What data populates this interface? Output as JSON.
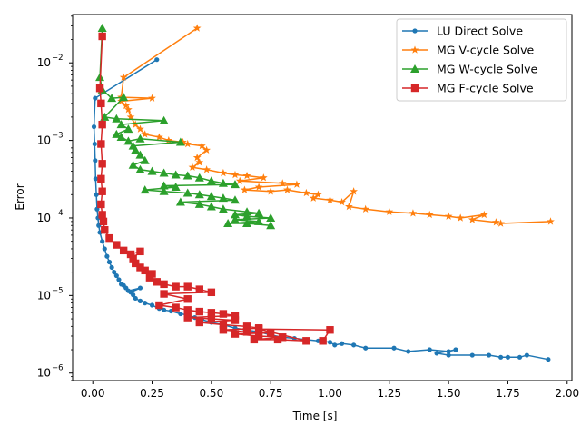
{
  "chart_data": {
    "type": "line",
    "title": "",
    "xlabel": "Time [s]",
    "ylabel": "Error",
    "xlim": [
      -0.085,
      2.02
    ],
    "ylim": [
      8e-07,
      0.042
    ],
    "yscale": "log",
    "grid": false,
    "legend_position": "top-right",
    "x_ticks": [
      0.0,
      0.25,
      0.5,
      0.75,
      1.0,
      1.25,
      1.5,
      1.75,
      2.0
    ],
    "x_tick_labels": [
      "0.00",
      "0.25",
      "0.50",
      "0.75",
      "1.00",
      "1.25",
      "1.50",
      "1.75",
      "2.00"
    ],
    "y_ticks": [
      1e-06,
      1e-05,
      0.0001,
      0.001,
      0.01
    ],
    "y_tick_labels": [
      "10",
      "10",
      "10",
      "10",
      "10"
    ],
    "y_tick_exponents": [
      "−6",
      "−5",
      "−4",
      "−3",
      "−2"
    ],
    "series": [
      {
        "name": "LU Direct Solve",
        "color": "#1f77b4",
        "marker": "circle",
        "points": [
          [
            0.27,
            0.011
          ],
          [
            0.01,
            0.0035
          ],
          [
            0.005,
            0.0015
          ],
          [
            0.008,
            0.0009
          ],
          [
            0.01,
            0.00055
          ],
          [
            0.012,
            0.00032
          ],
          [
            0.015,
            0.0002
          ],
          [
            0.018,
            0.00013
          ],
          [
            0.022,
            0.0001
          ],
          [
            0.025,
            8e-05
          ],
          [
            0.03,
            6.5e-05
          ],
          [
            0.04,
            5e-05
          ],
          [
            0.05,
            4e-05
          ],
          [
            0.06,
            3.2e-05
          ],
          [
            0.07,
            2.7e-05
          ],
          [
            0.08,
            2.3e-05
          ],
          [
            0.09,
            2e-05
          ],
          [
            0.1,
            1.8e-05
          ],
          [
            0.11,
            1.6e-05
          ],
          [
            0.12,
            1.4e-05
          ],
          [
            0.13,
            1.35e-05
          ],
          [
            0.14,
            1.25e-05
          ],
          [
            0.15,
            1.15e-05
          ],
          [
            0.2,
            1.25e-05
          ],
          [
            0.16,
            1.1e-05
          ],
          [
            0.17,
            1.02e-05
          ],
          [
            0.18,
            9.2e-06
          ],
          [
            0.2,
            8.5e-06
          ],
          [
            0.22,
            8e-06
          ],
          [
            0.25,
            7.5e-06
          ],
          [
            0.28,
            6.8e-06
          ],
          [
            0.3,
            6.5e-06
          ],
          [
            0.33,
            6.3e-06
          ],
          [
            0.37,
            5.8e-06
          ],
          [
            0.4,
            5.6e-06
          ],
          [
            0.43,
            5.2e-06
          ],
          [
            0.46,
            4.9e-06
          ],
          [
            0.5,
            4.5e-06
          ],
          [
            0.55,
            4.2e-06
          ],
          [
            0.6,
            3.8e-06
          ],
          [
            0.65,
            3.6e-06
          ],
          [
            0.7,
            3.4e-06
          ],
          [
            0.75,
            3.1e-06
          ],
          [
            0.8,
            2.9e-06
          ],
          [
            0.85,
            2.8e-06
          ],
          [
            0.9,
            2.7e-06
          ],
          [
            0.95,
            2.6e-06
          ],
          [
            1.0,
            2.5e-06
          ],
          [
            1.02,
            2.3e-06
          ],
          [
            1.05,
            2.4e-06
          ],
          [
            1.1,
            2.3e-06
          ],
          [
            1.15,
            2.1e-06
          ],
          [
            1.27,
            2.1e-06
          ],
          [
            1.33,
            1.9e-06
          ],
          [
            1.42,
            2e-06
          ],
          [
            1.5,
            1.9e-06
          ],
          [
            1.53,
            2e-06
          ],
          [
            1.45,
            1.8e-06
          ],
          [
            1.5,
            1.7e-06
          ],
          [
            1.6,
            1.7e-06
          ],
          [
            1.67,
            1.7e-06
          ],
          [
            1.72,
            1.6e-06
          ],
          [
            1.75,
            1.6e-06
          ],
          [
            1.8,
            1.6e-06
          ],
          [
            1.83,
            1.7e-06
          ],
          [
            1.92,
            1.5e-06
          ]
        ]
      },
      {
        "name": "MG V-cycle Solve",
        "color": "#ff7f0e",
        "marker": "star",
        "points": [
          [
            0.44,
            0.028
          ],
          [
            0.13,
            0.0065
          ],
          [
            0.12,
            0.0036
          ],
          [
            0.25,
            0.0035
          ],
          [
            0.12,
            0.0032
          ],
          [
            0.14,
            0.0028
          ],
          [
            0.15,
            0.0025
          ],
          [
            0.16,
            0.002
          ],
          [
            0.18,
            0.0016
          ],
          [
            0.2,
            0.0014
          ],
          [
            0.22,
            0.0012
          ],
          [
            0.28,
            0.0011
          ],
          [
            0.32,
            0.001
          ],
          [
            0.38,
            0.00095
          ],
          [
            0.4,
            0.0009
          ],
          [
            0.46,
            0.00085
          ],
          [
            0.48,
            0.00075
          ],
          [
            0.44,
            0.0006
          ],
          [
            0.45,
            0.00052
          ],
          [
            0.42,
            0.00045
          ],
          [
            0.48,
            0.00042
          ],
          [
            0.55,
            0.00038
          ],
          [
            0.6,
            0.00036
          ],
          [
            0.65,
            0.00035
          ],
          [
            0.72,
            0.00033
          ],
          [
            0.62,
            0.0003
          ],
          [
            0.8,
            0.00028
          ],
          [
            0.86,
            0.00027
          ],
          [
            0.7,
            0.00025
          ],
          [
            0.64,
            0.00023
          ],
          [
            0.75,
            0.00022
          ],
          [
            0.82,
            0.00023
          ],
          [
            0.9,
            0.00021
          ],
          [
            0.95,
            0.0002
          ],
          [
            0.93,
            0.00018
          ],
          [
            1.0,
            0.00017
          ],
          [
            1.05,
            0.00016
          ],
          [
            1.1,
            0.00022
          ],
          [
            1.08,
            0.00014
          ],
          [
            1.15,
            0.00013
          ],
          [
            1.25,
            0.00012
          ],
          [
            1.35,
            0.000115
          ],
          [
            1.42,
            0.00011
          ],
          [
            1.5,
            0.000105
          ],
          [
            1.55,
            0.0001
          ],
          [
            1.65,
            0.00011
          ],
          [
            1.6,
            9.5e-05
          ],
          [
            1.7,
            8.8e-05
          ],
          [
            1.72,
            8.5e-05
          ],
          [
            1.93,
            9e-05
          ]
        ]
      },
      {
        "name": "MG W-cycle Solve",
        "color": "#2ca02c",
        "marker": "triangle",
        "points": [
          [
            0.04,
            0.028
          ],
          [
            0.03,
            0.0065
          ],
          [
            0.04,
            0.0045
          ],
          [
            0.08,
            0.0035
          ],
          [
            0.13,
            0.0036
          ],
          [
            0.05,
            0.002
          ],
          [
            0.1,
            0.0019
          ],
          [
            0.3,
            0.0018
          ],
          [
            0.12,
            0.0016
          ],
          [
            0.15,
            0.0014
          ],
          [
            0.1,
            0.0012
          ],
          [
            0.12,
            0.0011
          ],
          [
            0.15,
            0.00098
          ],
          [
            0.2,
            0.00105
          ],
          [
            0.37,
            0.00095
          ],
          [
            0.17,
            0.00085
          ],
          [
            0.18,
            0.00075
          ],
          [
            0.2,
            0.00065
          ],
          [
            0.22,
            0.00055
          ],
          [
            0.17,
            0.00048
          ],
          [
            0.2,
            0.00042
          ],
          [
            0.25,
            0.0004
          ],
          [
            0.3,
            0.00038
          ],
          [
            0.35,
            0.00036
          ],
          [
            0.4,
            0.00035
          ],
          [
            0.45,
            0.00033
          ],
          [
            0.5,
            0.0003
          ],
          [
            0.55,
            0.00028
          ],
          [
            0.6,
            0.00027
          ],
          [
            0.3,
            0.00026
          ],
          [
            0.35,
            0.00025
          ],
          [
            0.22,
            0.00023
          ],
          [
            0.3,
            0.00022
          ],
          [
            0.4,
            0.00021
          ],
          [
            0.45,
            0.0002
          ],
          [
            0.5,
            0.00019
          ],
          [
            0.55,
            0.00018
          ],
          [
            0.6,
            0.00017
          ],
          [
            0.37,
            0.00016
          ],
          [
            0.45,
            0.00015
          ],
          [
            0.5,
            0.00014
          ],
          [
            0.55,
            0.00013
          ],
          [
            0.65,
            0.00012
          ],
          [
            0.7,
            0.000115
          ],
          [
            0.6,
            0.00011
          ],
          [
            0.65,
            0.000105
          ],
          [
            0.75,
            0.0001
          ],
          [
            0.6,
            9.5e-05
          ],
          [
            0.7,
            9e-05
          ],
          [
            0.57,
            8.5e-05
          ],
          [
            0.65,
            8.5e-05
          ],
          [
            0.75,
            8e-05
          ]
        ]
      },
      {
        "name": "MG F-cycle Solve",
        "color": "#d62728",
        "marker": "square",
        "points": [
          [
            0.04,
            0.022
          ],
          [
            0.03,
            0.0047
          ],
          [
            0.035,
            0.003
          ],
          [
            0.04,
            0.0016
          ],
          [
            0.035,
            0.0009
          ],
          [
            0.04,
            0.0005
          ],
          [
            0.035,
            0.00032
          ],
          [
            0.04,
            0.00022
          ],
          [
            0.035,
            0.00015
          ],
          [
            0.04,
            0.00011
          ],
          [
            0.045,
            9e-05
          ],
          [
            0.05,
            7e-05
          ],
          [
            0.07,
            5.5e-05
          ],
          [
            0.1,
            4.5e-05
          ],
          [
            0.13,
            3.8e-05
          ],
          [
            0.16,
            3.4e-05
          ],
          [
            0.2,
            3.7e-05
          ],
          [
            0.17,
            3e-05
          ],
          [
            0.18,
            2.6e-05
          ],
          [
            0.2,
            2.3e-05
          ],
          [
            0.22,
            2.1e-05
          ],
          [
            0.25,
            1.9e-05
          ],
          [
            0.24,
            1.7e-05
          ],
          [
            0.27,
            1.5e-05
          ],
          [
            0.3,
            1.4e-05
          ],
          [
            0.35,
            1.3e-05
          ],
          [
            0.4,
            1.3e-05
          ],
          [
            0.45,
            1.2e-05
          ],
          [
            0.5,
            1.1e-05
          ],
          [
            0.3,
            1.05e-05
          ],
          [
            0.4,
            9e-06
          ],
          [
            0.28,
            7.5e-06
          ],
          [
            0.35,
            7e-06
          ],
          [
            0.4,
            6.5e-06
          ],
          [
            0.45,
            6.2e-06
          ],
          [
            0.5,
            6e-06
          ],
          [
            0.55,
            5.8e-06
          ],
          [
            0.6,
            5.5e-06
          ],
          [
            0.4,
            5.2e-06
          ],
          [
            0.5,
            5e-06
          ],
          [
            0.6,
            4.8e-06
          ],
          [
            0.45,
            4.5e-06
          ],
          [
            0.55,
            4.2e-06
          ],
          [
            0.65,
            4e-06
          ],
          [
            0.7,
            3.8e-06
          ],
          [
            0.55,
            3.6e-06
          ],
          [
            0.65,
            3.4e-06
          ],
          [
            0.75,
            3.3e-06
          ],
          [
            0.6,
            3.2e-06
          ],
          [
            0.7,
            3e-06
          ],
          [
            0.8,
            2.9e-06
          ],
          [
            0.68,
            2.7e-06
          ],
          [
            0.78,
            2.7e-06
          ],
          [
            0.9,
            2.6e-06
          ],
          [
            0.7,
            3.7e-06
          ],
          [
            1.0,
            3.6e-06
          ],
          [
            0.97,
            2.6e-06
          ]
        ]
      }
    ]
  }
}
